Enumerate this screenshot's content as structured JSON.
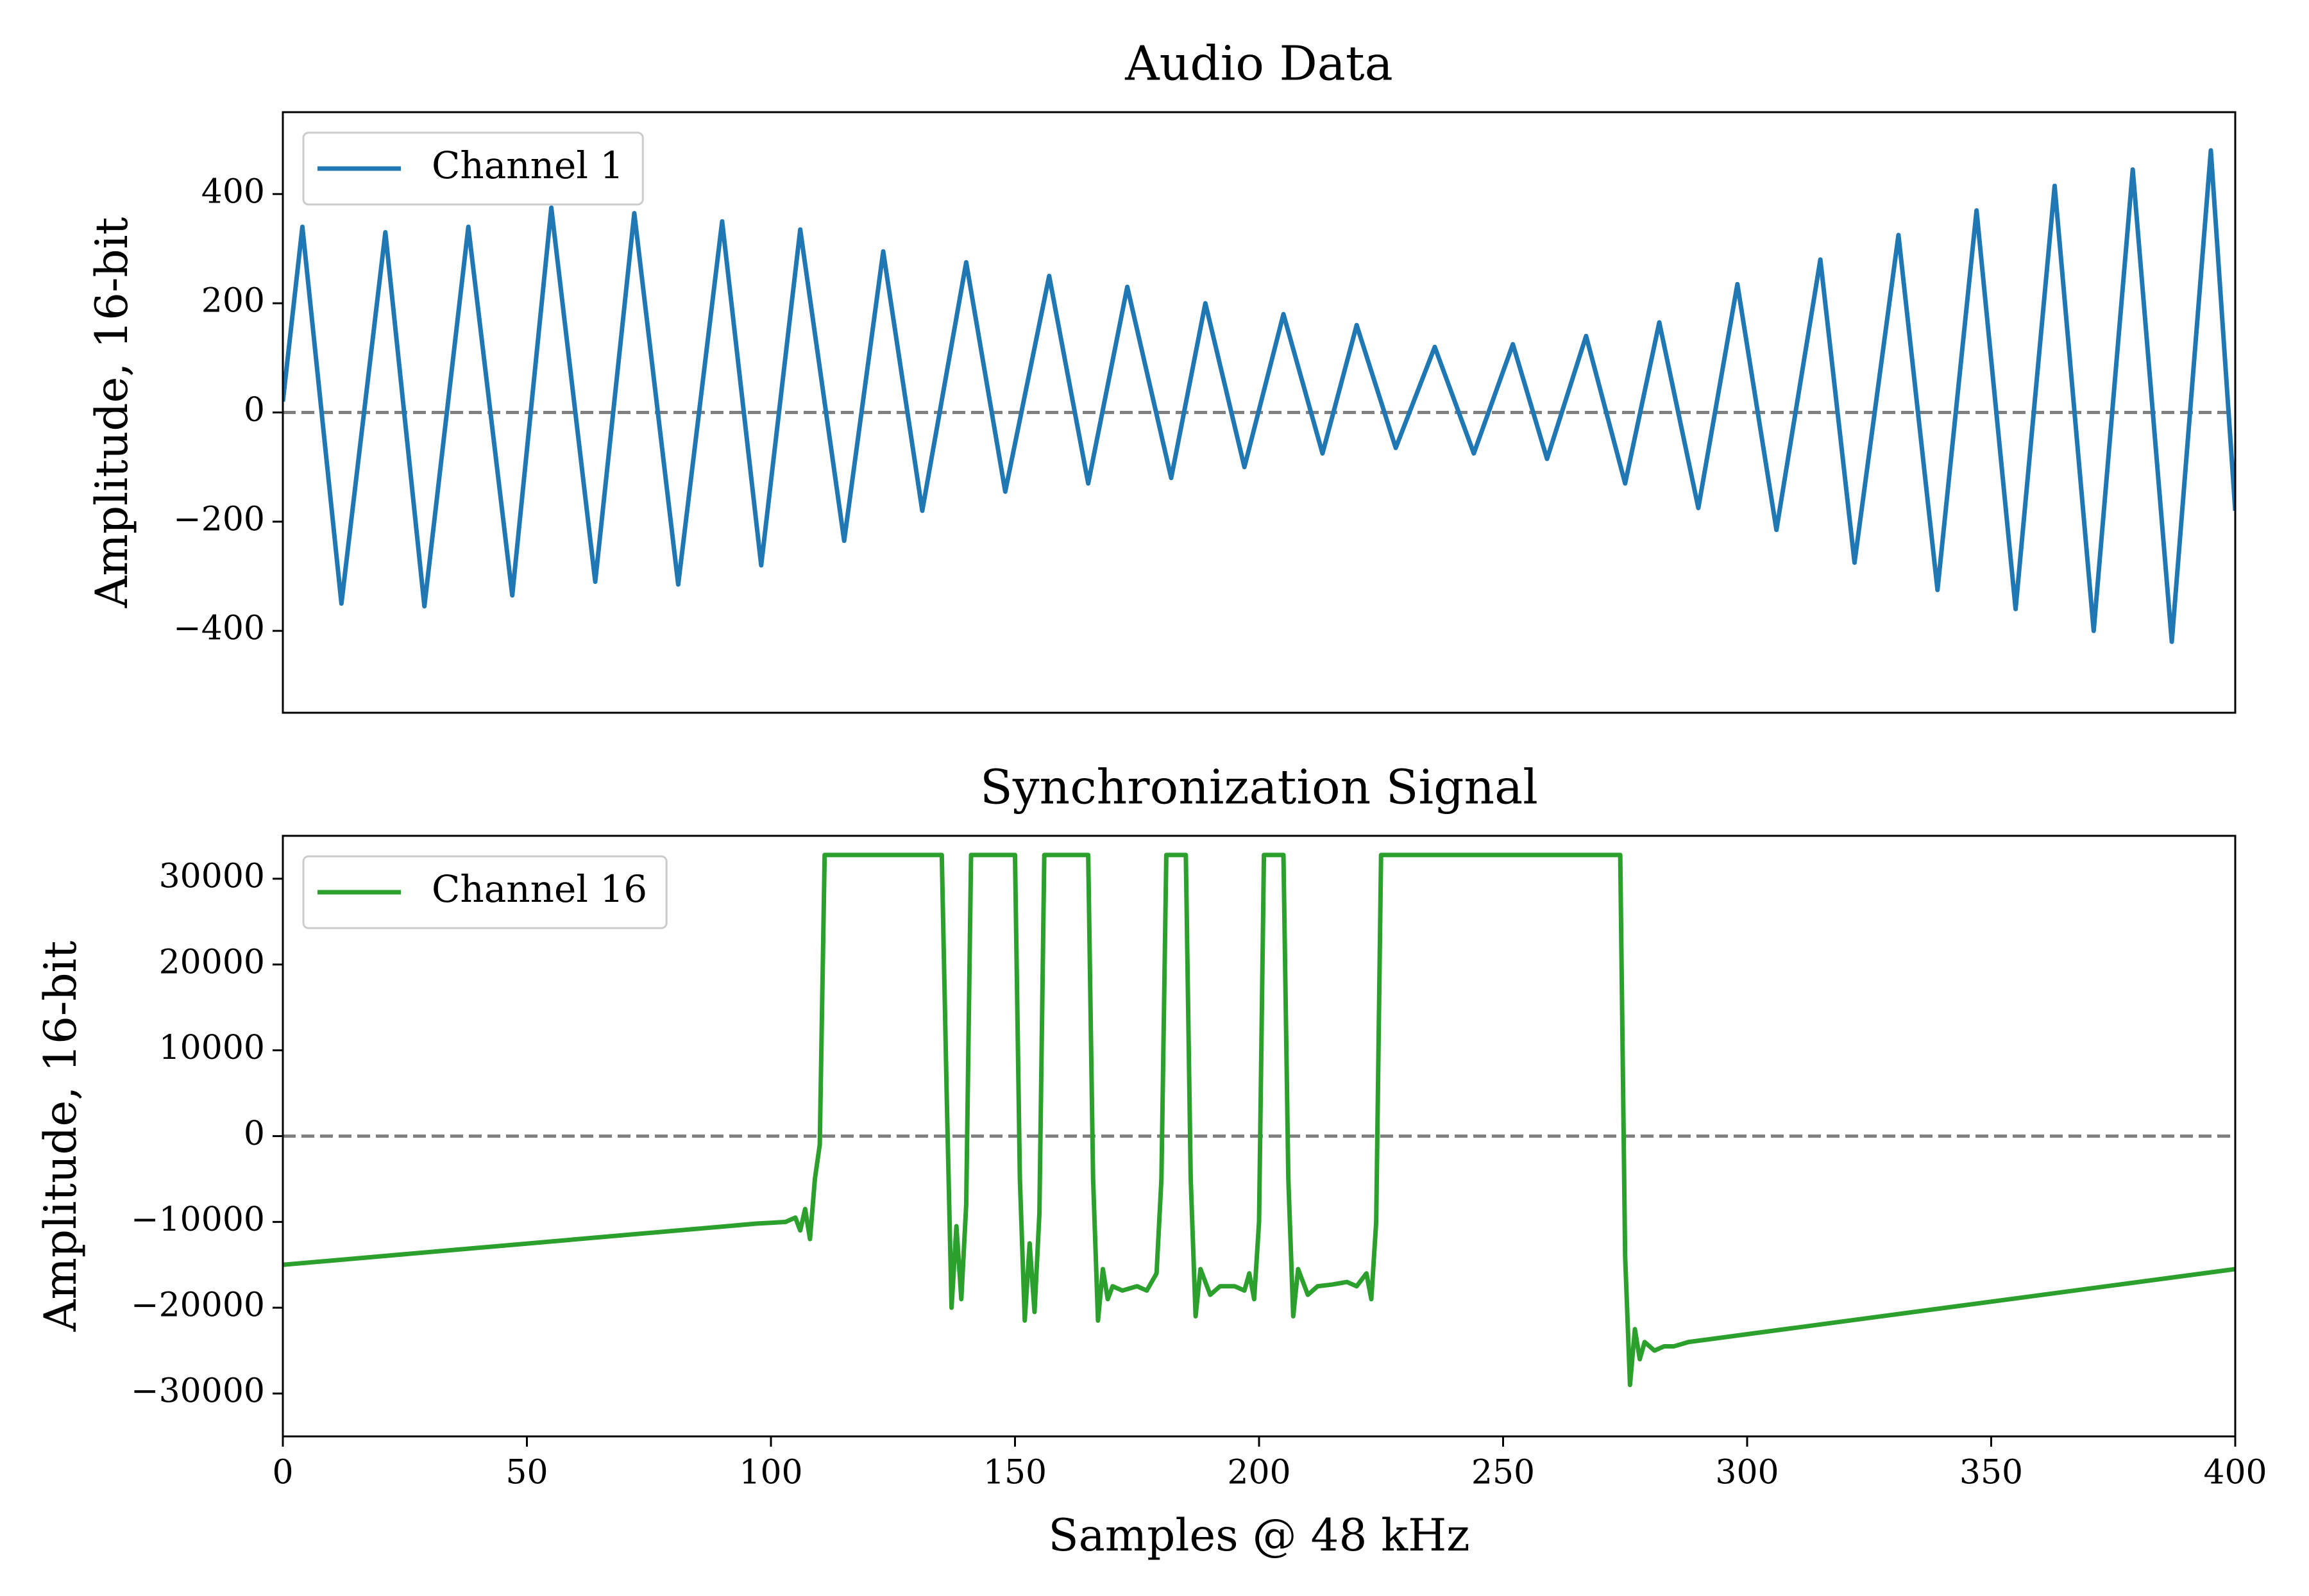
{
  "chart_data": [
    {
      "type": "line",
      "title": "Audio Data",
      "ylabel": "Amplitude, 16-bit",
      "x": [
        0,
        4,
        12,
        21,
        29,
        38,
        47,
        55,
        64,
        72,
        81,
        90,
        98,
        106,
        115,
        123,
        131,
        140,
        148,
        157,
        165,
        173,
        182,
        189,
        197,
        205,
        213,
        220,
        228,
        236,
        244,
        252,
        259,
        267,
        275,
        282,
        290,
        298,
        306,
        315,
        322,
        331,
        339,
        347,
        355,
        363,
        371,
        379,
        387,
        395,
        400
      ],
      "series": [
        {
          "name": "Channel 1",
          "color": "#1f77b4",
          "values": [
            20,
            340,
            -350,
            330,
            -355,
            340,
            -335,
            375,
            -310,
            365,
            -315,
            350,
            -280,
            335,
            -235,
            295,
            -180,
            275,
            -145,
            250,
            -130,
            230,
            -120,
            200,
            -100,
            180,
            -75,
            160,
            -65,
            120,
            -75,
            125,
            -85,
            140,
            -130,
            165,
            -175,
            235,
            -215,
            280,
            -275,
            325,
            -325,
            370,
            -360,
            415,
            -400,
            445,
            -420,
            480,
            -180
          ]
        }
      ],
      "xlim": [
        0,
        400
      ],
      "ylim": [
        -550,
        550
      ],
      "yticks": [
        {
          "value": -400,
          "label": "−400"
        },
        {
          "value": -200,
          "label": "−200"
        },
        0,
        200,
        400
      ],
      "zero_line": {
        "y": 0,
        "color": "#808080",
        "style": "dashed"
      },
      "legend": "upper left"
    },
    {
      "type": "line",
      "title": "Synchronization Signal",
      "ylabel": "Amplitude, 16-bit",
      "xlabel": "Samples @ 48 kHz",
      "x": [
        0,
        97,
        100,
        103,
        105,
        106,
        107,
        108,
        109,
        110,
        111,
        135,
        136,
        137,
        138,
        139,
        140,
        141,
        150,
        151,
        152,
        153,
        154,
        155,
        156,
        165,
        166,
        167,
        168,
        169,
        170,
        172,
        175,
        177,
        179,
        180,
        181,
        185,
        186,
        187,
        188,
        190,
        192,
        195,
        197,
        198,
        199,
        200,
        201,
        205,
        206,
        207,
        208,
        210,
        212,
        215,
        218,
        220,
        222,
        223,
        224,
        225,
        274,
        275,
        276,
        277,
        278,
        279,
        281,
        283,
        285,
        288,
        400
      ],
      "series": [
        {
          "name": "Channel 16",
          "color": "#2ca02c",
          "values": [
            -15000,
            -10200,
            -10100,
            -10000,
            -9500,
            -11000,
            -8500,
            -12000,
            -5000,
            -1000,
            32767,
            32767,
            5000,
            -20000,
            -10500,
            -19000,
            -8000,
            32767,
            32767,
            -5000,
            -21500,
            -12500,
            -20500,
            -9000,
            32767,
            32767,
            -5000,
            -21500,
            -15500,
            -19000,
            -17500,
            -18000,
            -17500,
            -18000,
            -16000,
            -5000,
            32767,
            32767,
            -5000,
            -21000,
            -15500,
            -18500,
            -17500,
            -17500,
            -18000,
            -16000,
            -19000,
            -10000,
            32767,
            32767,
            -5000,
            -21000,
            -15500,
            -18500,
            -17500,
            -17300,
            -17000,
            -17500,
            -16000,
            -19000,
            -10000,
            32767,
            32767,
            -14000,
            -29000,
            -22500,
            -26000,
            -24000,
            -25000,
            -24500,
            -24500,
            -24000,
            -15500
          ]
        }
      ],
      "xlim": [
        0,
        400
      ],
      "xticks": [
        0,
        50,
        100,
        150,
        200,
        250,
        300,
        350,
        400
      ],
      "ylim": [
        -35000,
        35000
      ],
      "yticks": [
        {
          "value": -30000,
          "label": "−30000"
        },
        {
          "value": -20000,
          "label": "−20000"
        },
        {
          "value": -10000,
          "label": "−10000"
        },
        0,
        10000,
        20000,
        30000
      ],
      "zero_line": {
        "y": 0,
        "color": "#808080",
        "style": "dashed"
      },
      "legend": "upper left"
    }
  ]
}
